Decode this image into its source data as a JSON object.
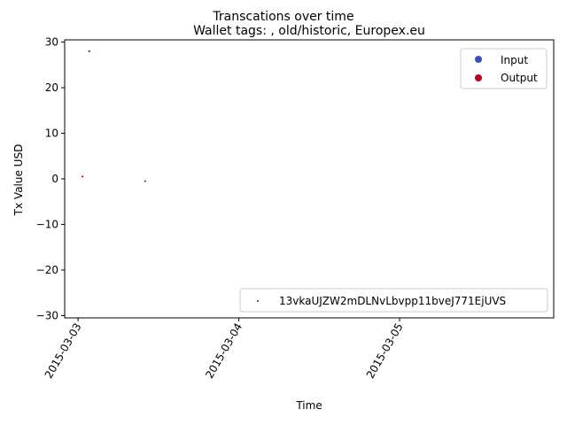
{
  "chart_data": {
    "type": "scatter",
    "suptitle": "Transcations over time",
    "title": "Wallet tags: , old/historic, Europex.eu",
    "xlabel": "Time",
    "ylabel": "Tx Value USD",
    "x_ticks": [
      "2015-03-03",
      "2015-03-04",
      "2015-03-05"
    ],
    "y_ticks": [
      "30",
      "20",
      "10",
      "0",
      "−10",
      "−20",
      "−30"
    ],
    "xlim": [
      "2015-03-02 22:00",
      "2015-03-05 23:00"
    ],
    "ylim": [
      -30.5,
      30.5
    ],
    "grid": false,
    "series": [
      {
        "name": "Input",
        "color": "#3b4cc0",
        "points": [
          {
            "x": "2015-03-03 10:00",
            "y": -0.5
          }
        ]
      },
      {
        "name": "Output",
        "color": "#b40426",
        "points": [
          {
            "x": "2015-03-03 00:40",
            "y": 0.5
          },
          {
            "x": "2015-03-03 01:40",
            "y": 28
          }
        ]
      }
    ],
    "legend_upper": {
      "placement": "upper-right",
      "entries": [
        {
          "label": "Input",
          "color": "#3b4cc0"
        },
        {
          "label": "Output",
          "color": "#b40426"
        }
      ]
    },
    "legend_lower": {
      "placement": "lower-right",
      "entries": [
        {
          "label": "13vkaUJZW2mDLNvLbvpp11bveJ771EjUVS",
          "color": "#1f77b4"
        }
      ]
    }
  }
}
